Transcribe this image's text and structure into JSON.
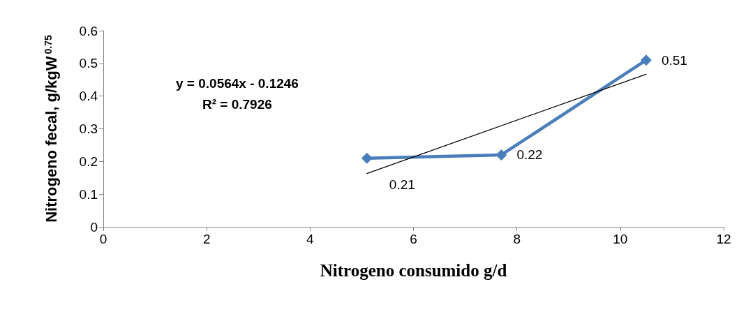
{
  "chart_data": {
    "type": "line",
    "xlabel": "Nitrogeno consumido g/d",
    "ylabel": "Nitrogeno fecal, g/kgW$^{0.75}$",
    "xlim": [
      0,
      12
    ],
    "xticks": [
      0,
      2,
      4,
      6,
      8,
      10,
      12
    ],
    "ylim": [
      0,
      0.6
    ],
    "yticks": [
      0,
      0.1,
      0.2,
      0.3,
      0.4,
      0.5,
      0.6
    ],
    "grid": false,
    "series": [
      {
        "color": "#4a7ebb",
        "x": [
          5.1,
          7.7,
          10.5
        ],
        "values": [
          0.21,
          0.22,
          0.51
        ],
        "marker": "diamond",
        "line_style": "solid",
        "data_labels": true
      },
      {
        "color": "#000000",
        "x": [
          5.1,
          10.5
        ],
        "values": [
          0.163,
          0.467
        ],
        "marker": "none",
        "line_style": "solid"
      }
    ],
    "annotations": [
      "y = 0.0564x - 0.1246",
      "R² = 0.7926"
    ]
  }
}
